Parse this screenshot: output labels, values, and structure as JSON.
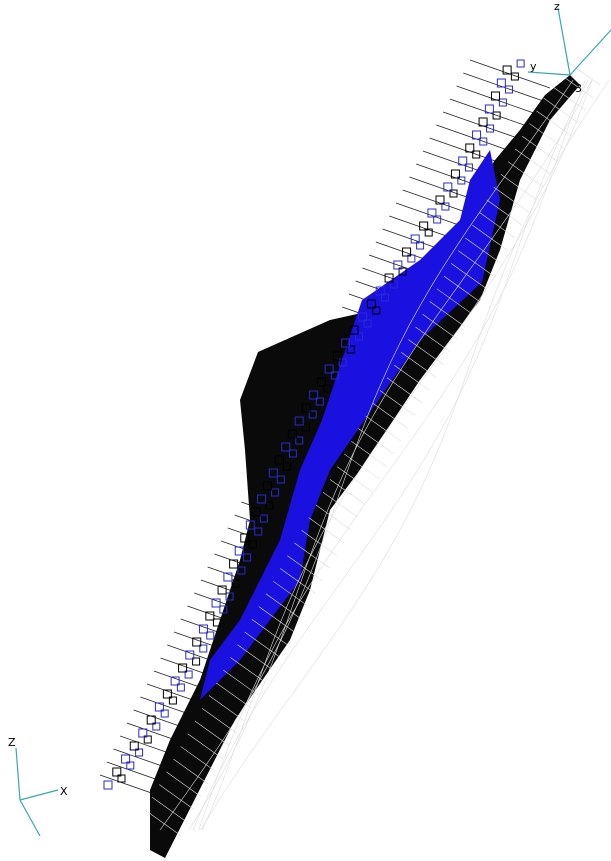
{
  "triad_top": {
    "z_label": "z",
    "y_label": "y",
    "node_label": "3"
  },
  "triad_bottom": {
    "z_label": "Z",
    "x_label": "X"
  }
}
